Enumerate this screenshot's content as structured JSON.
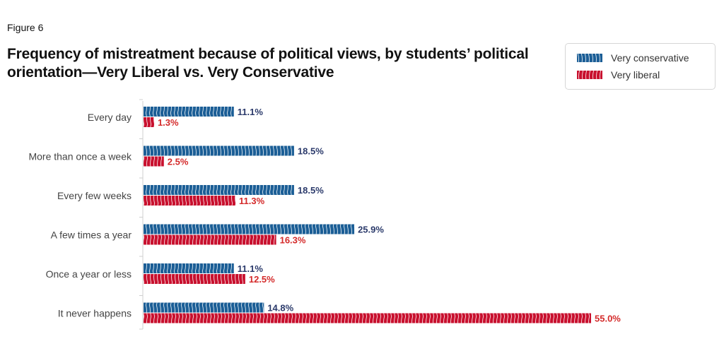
{
  "figure_label": "Figure 6",
  "title": "Frequency of mistreatment because of political views, by students’ political orientation—Very Liberal vs. Very Conservative",
  "colors": {
    "conservative": "#1b5e96",
    "liberal": "#c8102e",
    "conservative_label": "#2b3a6b",
    "liberal_label": "#d42a2a",
    "axis": "#cfcfcf"
  },
  "chart_data": {
    "type": "bar",
    "orientation": "horizontal",
    "title": "Frequency of mistreatment because of political views, by students’ political orientation—Very Liberal vs. Very Conservative",
    "xlabel": "",
    "ylabel": "",
    "value_suffix": "%",
    "legend_position": "top-right",
    "grid": false,
    "xlim": [
      0,
      60
    ],
    "categories": [
      "Every day",
      "More than once a week",
      "Every few weeks",
      "A few times a year",
      "Once a year or less",
      "It never happens"
    ],
    "series": [
      {
        "name": "Very conservative",
        "values": [
          11.1,
          18.5,
          18.5,
          25.9,
          11.1,
          14.8
        ],
        "labels": [
          "11.1%",
          "18.5%",
          "18.5%",
          "25.9%",
          "11.1%",
          "14.8%"
        ]
      },
      {
        "name": "Very liberal",
        "values": [
          1.3,
          2.5,
          11.3,
          16.3,
          12.5,
          55.0
        ],
        "labels": [
          "1.3%",
          "2.5%",
          "11.3%",
          "16.3%",
          "12.5%",
          "55.0%"
        ]
      }
    ]
  }
}
